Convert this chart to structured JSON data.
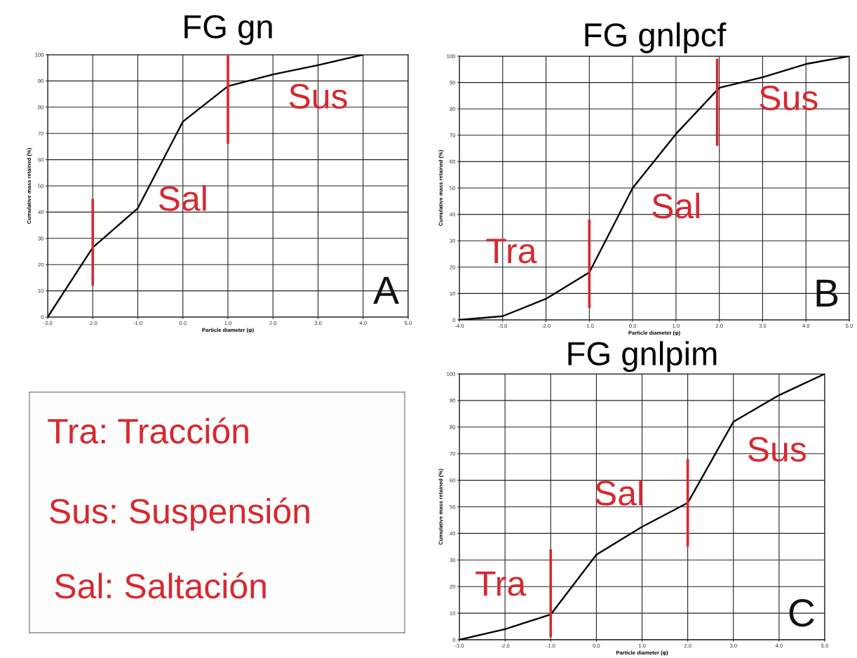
{
  "chart_data": [
    {
      "type": "line",
      "title": "FG gn",
      "xlabel": "Particle diameter (φ)",
      "ylabel": "Cumulative mass retained (%)",
      "xlim": [
        -3,
        5
      ],
      "ylim": [
        0,
        100
      ],
      "xticks": [
        {
          "value": -3,
          "label": "-3.0"
        },
        {
          "value": -2,
          "label": "-2.0"
        },
        {
          "value": -1,
          "label": "-1.0"
        },
        {
          "value": 0,
          "label": "0.0"
        },
        {
          "value": 1,
          "label": "1.0"
        },
        {
          "value": 2,
          "label": "2.0"
        },
        {
          "value": 3,
          "label": "3.0"
        },
        {
          "value": 4,
          "label": "4.0"
        },
        {
          "value": 5,
          "label": "5.0"
        }
      ],
      "yticks": [
        0,
        10,
        20,
        30,
        40,
        50,
        60,
        70,
        80,
        90,
        100
      ],
      "grid": true,
      "series": [
        {
          "color": "#000000",
          "x": [
            -3,
            -2,
            -1,
            0,
            1,
            2,
            3,
            4
          ],
          "values": [
            0,
            26.5,
            41.5,
            74.5,
            88,
            92.5,
            96,
            100
          ]
        },
        {
          "color": "#d7282f",
          "x": [
            -2,
            -2
          ],
          "values": [
            12,
            45
          ]
        },
        {
          "color": "#d7282f",
          "x": [
            1,
            1
          ],
          "values": [
            66,
            100
          ]
        }
      ],
      "annotations": [
        "Sal",
        "Sus",
        "A"
      ]
    },
    {
      "type": "line",
      "title": "FG gnlpcf",
      "xlabel": "Particle diameter (φ)",
      "ylabel": "Cumulative mass retained (%)",
      "xlim": [
        -4,
        5
      ],
      "ylim": [
        0,
        100
      ],
      "xticks": [
        {
          "value": -4,
          "label": "-4.0"
        },
        {
          "value": -3,
          "label": "-3.0"
        },
        {
          "value": -2,
          "label": "-2.0"
        },
        {
          "value": -1,
          "label": "-1.0"
        },
        {
          "value": 0,
          "label": "0.0"
        },
        {
          "value": 1,
          "label": "1.0"
        },
        {
          "value": 2,
          "label": "2.0"
        },
        {
          "value": 3,
          "label": "3.0"
        },
        {
          "value": 4,
          "label": "4.0"
        },
        {
          "value": 5,
          "label": "5.0"
        }
      ],
      "yticks": [
        0,
        10,
        20,
        30,
        40,
        50,
        60,
        70,
        80,
        90,
        100
      ],
      "grid": true,
      "series": [
        {
          "color": "#000000",
          "x": [
            -4,
            -3,
            -2,
            -1,
            0,
            1,
            2,
            3,
            4,
            5
          ],
          "values": [
            0,
            1.4,
            8,
            18,
            50,
            70.5,
            88,
            92,
            97,
            100
          ]
        },
        {
          "color": "#d7282f",
          "x": [
            -1,
            -1
          ],
          "values": [
            4.5,
            38
          ]
        },
        {
          "color": "#d7282f",
          "x": [
            1.95,
            1.95
          ],
          "values": [
            66,
            99
          ]
        }
      ],
      "annotations": [
        "Tra",
        "Sal",
        "Sus",
        "B"
      ]
    },
    {
      "type": "other",
      "annotations": [
        "Tra: Tracción",
        "Sus: Suspensión",
        "Sal: Saltación"
      ]
    },
    {
      "type": "line",
      "title": "FG gnlpim",
      "xlabel": "Particle diameter (φ)",
      "ylabel": "Cumulative mass retained (%)",
      "xlim": [
        -3,
        5
      ],
      "ylim": [
        0,
        100
      ],
      "xticks": [
        {
          "value": -3,
          "label": "-3.0"
        },
        {
          "value": -2,
          "label": "-2.0"
        },
        {
          "value": -1,
          "label": "-1.0"
        },
        {
          "value": 0,
          "label": "0.0"
        },
        {
          "value": 1,
          "label": "1.0"
        },
        {
          "value": 2,
          "label": "2.0"
        },
        {
          "value": 3,
          "label": "3.0"
        },
        {
          "value": 4,
          "label": "4.0"
        },
        {
          "value": 5,
          "label": "5.0"
        }
      ],
      "yticks": [
        0,
        10,
        20,
        30,
        40,
        50,
        60,
        70,
        80,
        90,
        100
      ],
      "grid": true,
      "series": [
        {
          "color": "#000000",
          "x": [
            -3,
            -2,
            -1,
            0,
            1,
            2,
            3,
            4,
            5
          ],
          "values": [
            0,
            4,
            9.5,
            32,
            42.5,
            51.5,
            82,
            92,
            100
          ]
        },
        {
          "color": "#d7282f",
          "x": [
            -1,
            -1
          ],
          "values": [
            1,
            34
          ]
        },
        {
          "color": "#d7282f",
          "x": [
            2,
            2
          ],
          "values": [
            35,
            68
          ]
        }
      ],
      "annotations": [
        "Tra",
        "Sal",
        "Sus",
        "C"
      ]
    }
  ]
}
